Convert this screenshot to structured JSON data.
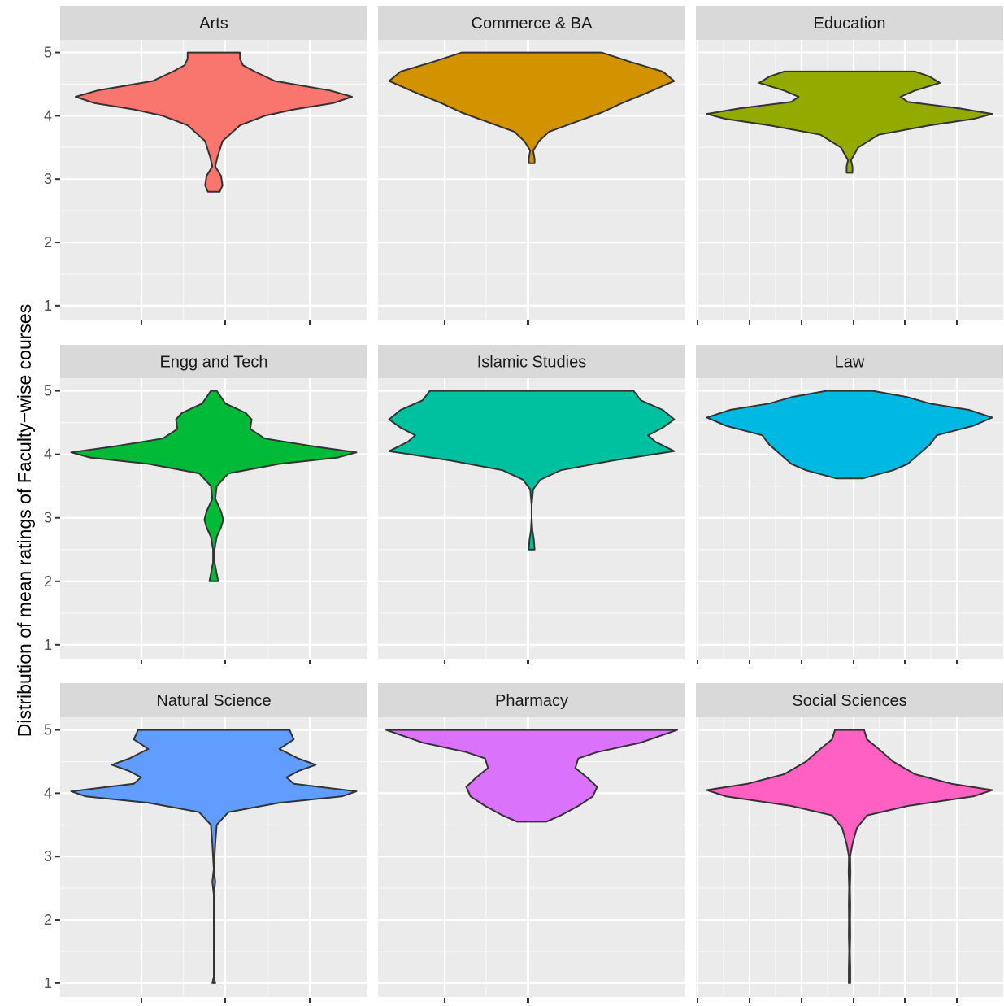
{
  "chart_data": {
    "type": "violin",
    "ylabel": "Distribution of mean ratings of Faculty−wise courses",
    "xlabel": "",
    "ylim": [
      1,
      5
    ],
    "y_ticks": [
      1,
      2,
      3,
      4,
      5
    ],
    "grid": true,
    "legend": "none",
    "facets": [
      {
        "name": "Arts",
        "color": "#F8766D",
        "min": 2.8,
        "max": 5.0,
        "density": [
          [
            2.8,
            0.04
          ],
          [
            2.9,
            0.06
          ],
          [
            3.05,
            0.05
          ],
          [
            3.2,
            0.01
          ],
          [
            3.35,
            0.025
          ],
          [
            3.6,
            0.06
          ],
          [
            3.85,
            0.18
          ],
          [
            4.0,
            0.35
          ],
          [
            4.1,
            0.55
          ],
          [
            4.2,
            0.82
          ],
          [
            4.3,
            0.95
          ],
          [
            4.4,
            0.8
          ],
          [
            4.55,
            0.42
          ],
          [
            4.7,
            0.28
          ],
          [
            4.8,
            0.2
          ],
          [
            4.9,
            0.18
          ],
          [
            5.0,
            0.18
          ]
        ]
      },
      {
        "name": "Commerce & BA",
        "color": "#D39200",
        "min": 3.25,
        "max": 5.0,
        "density": [
          [
            3.25,
            0.02
          ],
          [
            3.32,
            0.02
          ],
          [
            3.45,
            0.01
          ],
          [
            3.6,
            0.05
          ],
          [
            3.75,
            0.12
          ],
          [
            3.9,
            0.3
          ],
          [
            4.05,
            0.48
          ],
          [
            4.2,
            0.62
          ],
          [
            4.35,
            0.78
          ],
          [
            4.55,
            0.98
          ],
          [
            4.7,
            0.9
          ],
          [
            4.85,
            0.68
          ],
          [
            5.0,
            0.48
          ]
        ]
      },
      {
        "name": "Education",
        "color": "#93AA00",
        "min": 3.1,
        "max": 4.7,
        "density": [
          [
            3.1,
            0.02
          ],
          [
            3.2,
            0.02
          ],
          [
            3.3,
            0.01
          ],
          [
            3.5,
            0.06
          ],
          [
            3.7,
            0.2
          ],
          [
            3.85,
            0.55
          ],
          [
            3.95,
            0.85
          ],
          [
            4.03,
            0.98
          ],
          [
            4.12,
            0.75
          ],
          [
            4.22,
            0.4
          ],
          [
            4.3,
            0.35
          ],
          [
            4.4,
            0.45
          ],
          [
            4.52,
            0.62
          ],
          [
            4.62,
            0.55
          ],
          [
            4.7,
            0.45
          ]
        ]
      },
      {
        "name": "Engg and Tech",
        "color": "#00BA38",
        "min": 2.0,
        "max": 5.0,
        "density": [
          [
            2.0,
            0.03
          ],
          [
            2.12,
            0.02
          ],
          [
            2.3,
            0.005
          ],
          [
            2.5,
            0.005
          ],
          [
            2.7,
            0.02
          ],
          [
            2.85,
            0.05
          ],
          [
            2.97,
            0.065
          ],
          [
            3.1,
            0.05
          ],
          [
            3.3,
            0.01
          ],
          [
            3.5,
            0.02
          ],
          [
            3.7,
            0.1
          ],
          [
            3.85,
            0.45
          ],
          [
            3.95,
            0.85
          ],
          [
            4.03,
            0.98
          ],
          [
            4.12,
            0.7
          ],
          [
            4.25,
            0.35
          ],
          [
            4.4,
            0.25
          ],
          [
            4.55,
            0.26
          ],
          [
            4.65,
            0.22
          ],
          [
            4.8,
            0.08
          ],
          [
            4.9,
            0.05
          ],
          [
            5.0,
            0.02
          ]
        ]
      },
      {
        "name": "Islamic Studies",
        "color": "#00C19F",
        "min": 2.5,
        "max": 5.0,
        "density": [
          [
            2.5,
            0.02
          ],
          [
            2.65,
            0.015
          ],
          [
            2.8,
            0.005
          ],
          [
            3.0,
            0.0
          ],
          [
            3.2,
            0.0
          ],
          [
            3.45,
            0.01
          ],
          [
            3.6,
            0.06
          ],
          [
            3.75,
            0.2
          ],
          [
            3.9,
            0.55
          ],
          [
            4.05,
            0.98
          ],
          [
            4.2,
            0.85
          ],
          [
            4.3,
            0.8
          ],
          [
            4.42,
            0.9
          ],
          [
            4.55,
            0.98
          ],
          [
            4.7,
            0.9
          ],
          [
            4.85,
            0.75
          ],
          [
            5.0,
            0.7
          ]
        ]
      },
      {
        "name": "Law",
        "color": "#00B9E3",
        "min": 3.62,
        "max": 5.0,
        "density": [
          [
            3.62,
            0.09
          ],
          [
            3.75,
            0.3
          ],
          [
            3.85,
            0.4
          ],
          [
            3.95,
            0.45
          ],
          [
            4.05,
            0.5
          ],
          [
            4.15,
            0.55
          ],
          [
            4.3,
            0.6
          ],
          [
            4.45,
            0.85
          ],
          [
            4.58,
            0.98
          ],
          [
            4.7,
            0.82
          ],
          [
            4.8,
            0.55
          ],
          [
            4.9,
            0.4
          ],
          [
            5.0,
            0.16
          ]
        ]
      },
      {
        "name": "Natural Science",
        "color": "#619CFF",
        "min": 1.0,
        "max": 5.0,
        "density": [
          [
            1.0,
            0.01
          ],
          [
            1.1,
            0.0
          ],
          [
            1.5,
            0.0
          ],
          [
            2.0,
            0.0
          ],
          [
            2.4,
            0.0
          ],
          [
            2.6,
            0.01
          ],
          [
            2.8,
            0.0
          ],
          [
            3.2,
            0.01
          ],
          [
            3.5,
            0.02
          ],
          [
            3.7,
            0.1
          ],
          [
            3.85,
            0.45
          ],
          [
            3.95,
            0.88
          ],
          [
            4.03,
            0.98
          ],
          [
            4.15,
            0.55
          ],
          [
            4.25,
            0.5
          ],
          [
            4.35,
            0.58
          ],
          [
            4.45,
            0.7
          ],
          [
            4.55,
            0.58
          ],
          [
            4.7,
            0.45
          ],
          [
            4.85,
            0.55
          ],
          [
            5.0,
            0.52
          ]
        ]
      },
      {
        "name": "Pharmacy",
        "color": "#DB72FB",
        "min": 3.55,
        "max": 5.0,
        "density": [
          [
            3.55,
            0.1
          ],
          [
            3.65,
            0.2
          ],
          [
            3.8,
            0.32
          ],
          [
            3.95,
            0.42
          ],
          [
            4.1,
            0.45
          ],
          [
            4.25,
            0.38
          ],
          [
            4.4,
            0.3
          ],
          [
            4.55,
            0.32
          ],
          [
            4.65,
            0.45
          ],
          [
            4.8,
            0.75
          ],
          [
            4.92,
            0.9
          ],
          [
            5.0,
            1.0
          ]
        ]
      },
      {
        "name": "Social Sciences",
        "color": "#FF61C3",
        "min": 1.0,
        "max": 5.0,
        "density": [
          [
            1.0,
            0.005
          ],
          [
            1.25,
            0.005
          ],
          [
            1.5,
            0.002
          ],
          [
            1.75,
            0.005
          ],
          [
            2.0,
            0.004
          ],
          [
            2.25,
            0.005
          ],
          [
            2.5,
            0.003
          ],
          [
            2.75,
            0.006
          ],
          [
            3.0,
            0.004
          ],
          [
            3.2,
            0.02
          ],
          [
            3.45,
            0.05
          ],
          [
            3.65,
            0.12
          ],
          [
            3.8,
            0.4
          ],
          [
            3.95,
            0.85
          ],
          [
            4.05,
            0.98
          ],
          [
            4.15,
            0.7
          ],
          [
            4.3,
            0.45
          ],
          [
            4.5,
            0.3
          ],
          [
            4.7,
            0.2
          ],
          [
            4.85,
            0.12
          ],
          [
            5.0,
            0.1
          ]
        ]
      }
    ]
  }
}
